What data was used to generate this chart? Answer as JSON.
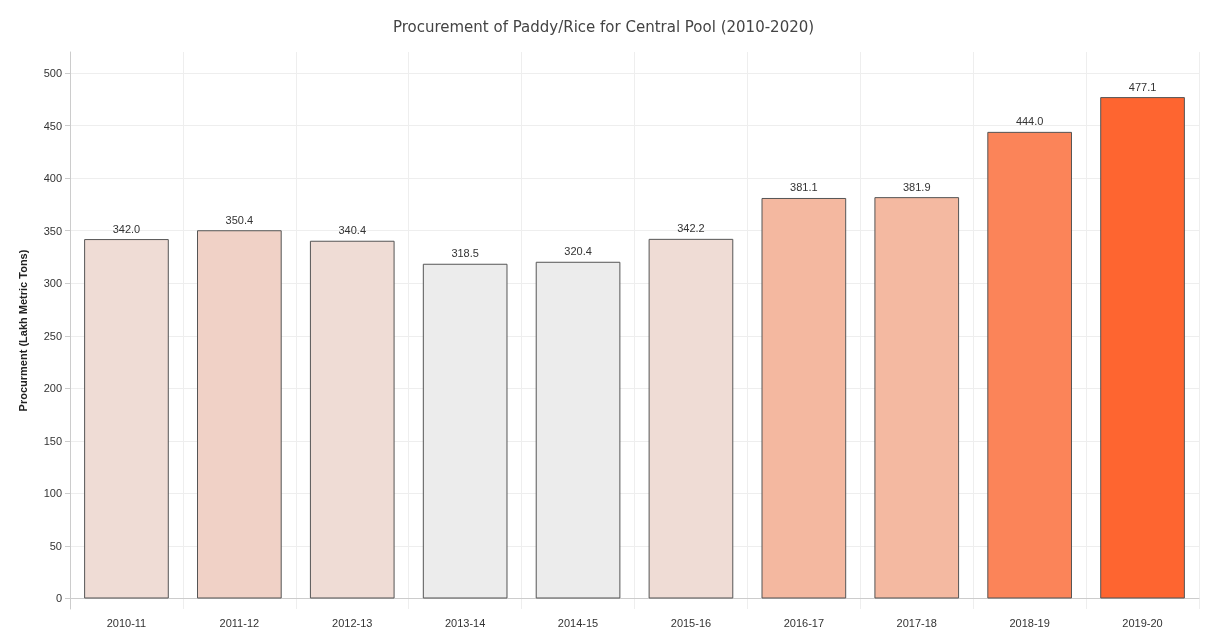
{
  "chart_data": {
    "type": "bar",
    "title": "Procurement of Paddy/Rice for Central Pool (2010-2020)",
    "ylabel": "Procurment (Lakh Metric Tons)",
    "categories": [
      "2010-11",
      "2011-12",
      "2012-13",
      "2013-14",
      "2014-15",
      "2015-16",
      "2016-17",
      "2017-18",
      "2018-19",
      "2019-20"
    ],
    "values": [
      342.0,
      350.4,
      340.4,
      318.5,
      320.4,
      342.2,
      381.1,
      381.9,
      444.0,
      477.1
    ],
    "value_labels": [
      "342.0",
      "350.4",
      "340.4",
      "318.5",
      "320.4",
      "342.2",
      "381.1",
      "381.9",
      "444.0",
      "477.1"
    ],
    "colors": [
      "#efdcd5",
      "#f0d1c6",
      "#efdcd5",
      "#ececec",
      "#ececec",
      "#efdcd5",
      "#f4b8a0",
      "#f4b9a1",
      "#fb8459",
      "#fe6530"
    ],
    "ylim": [
      -10,
      520
    ],
    "yticks": [
      0,
      50,
      100,
      150,
      200,
      250,
      300,
      350,
      400,
      450,
      500
    ],
    "grid": true
  }
}
